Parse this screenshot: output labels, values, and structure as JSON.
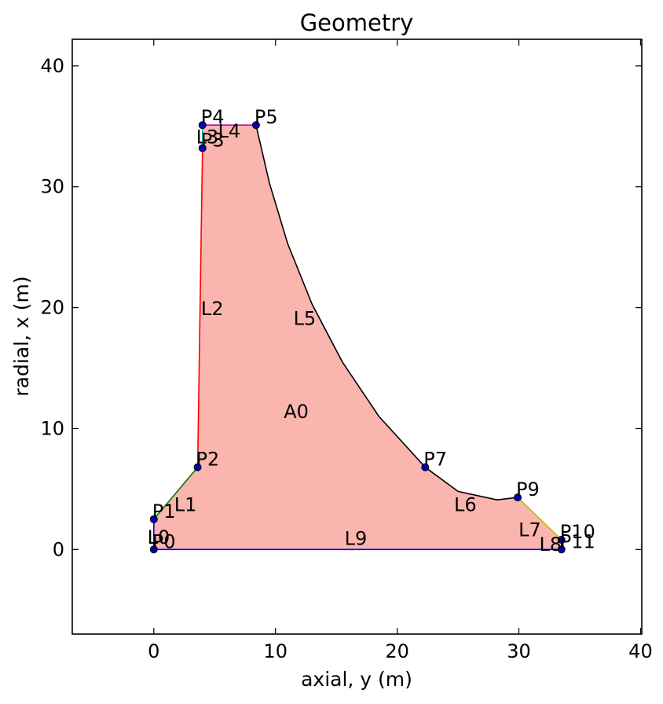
{
  "chart_data": {
    "type": "scatter",
    "title": "Geometry",
    "xlabel": "axial, y (m)",
    "ylabel": "radial, x (m)",
    "xlim": [
      -6.7,
      40.1
    ],
    "ylim": [
      -7.0,
      42.2
    ],
    "xticks": [
      0,
      10,
      20,
      30,
      40
    ],
    "yticks": [
      0,
      10,
      20,
      30,
      40
    ],
    "grid": false,
    "area": {
      "label": "A0",
      "x": 11.7,
      "y": 11.4,
      "fill": "#fab5ae"
    },
    "points": [
      {
        "label": "P0",
        "x": 0.0,
        "y": 0.0
      },
      {
        "label": "P1",
        "x": 0.0,
        "y": 2.5
      },
      {
        "label": "P2",
        "x": 3.6,
        "y": 6.8
      },
      {
        "label": "P3",
        "x": 4.0,
        "y": 33.2
      },
      {
        "label": "P4",
        "x": 4.0,
        "y": 35.1
      },
      {
        "label": "P5",
        "x": 8.4,
        "y": 35.1
      },
      {
        "label": "P7",
        "x": 22.3,
        "y": 6.8
      },
      {
        "label": "P9",
        "x": 29.9,
        "y": 4.3
      },
      {
        "label": "P10",
        "x": 33.5,
        "y": 0.8
      },
      {
        "label": "P11",
        "x": 33.5,
        "y": 0.0
      }
    ],
    "lines": [
      {
        "label": "L0",
        "color": "#0000ff",
        "path": [
          [
            0.0,
            0.0
          ],
          [
            0.0,
            2.5
          ]
        ],
        "label_at": [
          0.4,
          1.0
        ]
      },
      {
        "label": "L1",
        "color": "#008000",
        "path": [
          [
            0.0,
            2.5
          ],
          [
            3.6,
            6.8
          ]
        ],
        "label_at": [
          2.6,
          3.7
        ]
      },
      {
        "label": "L2",
        "color": "#ff0000",
        "path": [
          [
            3.6,
            6.8
          ],
          [
            4.0,
            33.2
          ]
        ],
        "label_at": [
          4.8,
          19.9
        ]
      },
      {
        "label": "L3",
        "color": "#00bfbf",
        "path": [
          [
            4.0,
            33.2
          ],
          [
            4.0,
            35.1
          ]
        ],
        "label_at": [
          4.4,
          34.1
        ]
      },
      {
        "label": "L4",
        "color": "#bf00bf",
        "path": [
          [
            4.0,
            35.1
          ],
          [
            8.4,
            35.1
          ]
        ],
        "label_at": [
          6.2,
          34.6
        ]
      },
      {
        "label": "L5",
        "color": "#000000",
        "path": [
          [
            8.4,
            35.1
          ],
          [
            9.5,
            30.3
          ],
          [
            11.0,
            25.3
          ],
          [
            13.0,
            20.3
          ],
          [
            15.5,
            15.5
          ],
          [
            18.5,
            11.0
          ],
          [
            22.3,
            6.8
          ]
        ],
        "label_at": [
          12.4,
          19.1
        ]
      },
      {
        "label": "L6",
        "color": "#000000",
        "path": [
          [
            22.3,
            6.8
          ],
          [
            25.0,
            4.8
          ],
          [
            28.2,
            4.1
          ],
          [
            29.9,
            4.3
          ]
        ],
        "label_at": [
          25.6,
          3.7
        ]
      },
      {
        "label": "L7",
        "color": "#bfbf00",
        "path": [
          [
            29.9,
            4.3
          ],
          [
            33.5,
            0.8
          ]
        ],
        "label_at": [
          30.9,
          1.6
        ]
      },
      {
        "label": "L8",
        "color": "#000000",
        "path": [
          [
            33.5,
            0.8
          ],
          [
            33.5,
            0.0
          ]
        ],
        "label_at": [
          32.6,
          0.4
        ]
      },
      {
        "label": "L9",
        "color": "#0000ff",
        "path": [
          [
            33.5,
            0.0
          ],
          [
            0.0,
            0.0
          ]
        ],
        "label_at": [
          16.6,
          0.9
        ]
      }
    ]
  }
}
